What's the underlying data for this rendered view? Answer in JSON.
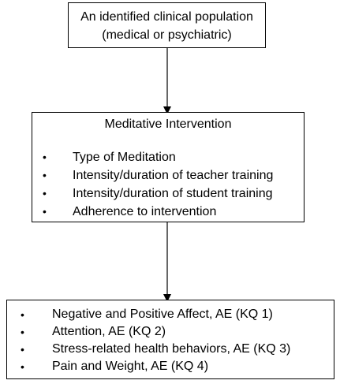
{
  "nodes": {
    "population": {
      "line1": "An identified clinical population",
      "line2": "(medical or psychiatric)"
    },
    "intervention": {
      "title": "Meditative Intervention",
      "items": [
        "Type of Meditation",
        "Intensity/duration of teacher training",
        "Intensity/duration of student training",
        "Adherence to intervention"
      ]
    },
    "outcomes": {
      "items": [
        "Negative and Positive Affect, AE (KQ 1)",
        "Attention, AE (KQ 2)",
        "Stress-related health behaviors, AE (KQ 3)",
        "Pain and Weight, AE (KQ 4)"
      ]
    }
  },
  "bullet": "•"
}
